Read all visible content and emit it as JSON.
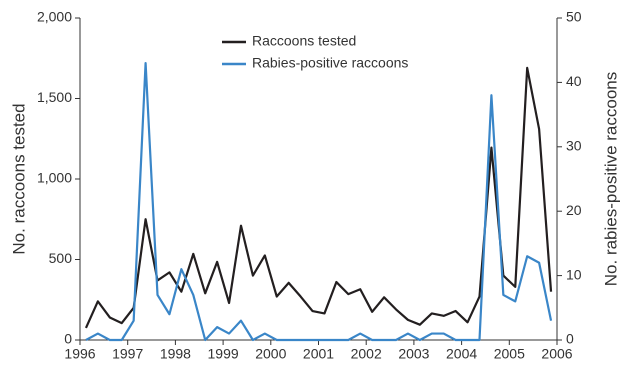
{
  "chart_data": {
    "type": "line",
    "x": [
      1996.125,
      1996.375,
      1996.625,
      1996.875,
      1997.125,
      1997.375,
      1997.625,
      1997.875,
      1998.125,
      1998.375,
      1998.625,
      1998.875,
      1999.125,
      1999.375,
      1999.625,
      1999.875,
      2000.125,
      2000.375,
      2000.625,
      2000.875,
      2001.125,
      2001.375,
      2001.625,
      2001.875,
      2002.125,
      2002.375,
      2002.625,
      2002.875,
      2003.125,
      2003.375,
      2003.625,
      2003.875,
      2004.125,
      2004.375,
      2004.625,
      2004.875,
      2005.125,
      2005.375,
      2005.625,
      2005.875
    ],
    "series": [
      {
        "name": "Raccoons tested",
        "color": "#231f20",
        "values": [
          75,
          240,
          140,
          105,
          200,
          750,
          370,
          420,
          300,
          535,
          290,
          485,
          230,
          710,
          400,
          525,
          270,
          355,
          270,
          180,
          165,
          360,
          285,
          315,
          175,
          265,
          190,
          125,
          95,
          165,
          150,
          180,
          110,
          270,
          1195,
          400,
          330,
          1690,
          1310,
          300
        ]
      },
      {
        "name": "Rabies-positive raccoons",
        "color": "#3a86c8",
        "axis": "y2",
        "values": [
          0,
          1,
          0,
          0,
          3,
          43,
          7,
          4,
          11,
          7,
          0,
          2,
          1,
          3,
          0,
          1,
          0,
          0,
          0,
          0,
          0,
          0,
          0,
          1,
          0,
          0,
          0,
          1,
          0,
          1,
          1,
          0,
          0,
          0,
          38,
          7,
          6,
          13,
          12,
          3
        ]
      }
    ],
    "ylabel": "No. raccoons tested",
    "y2label": "No. rabies-positive raccoons",
    "xlim": [
      1996,
      2006
    ],
    "xticks": [
      1996,
      1997,
      1998,
      1999,
      2000,
      2001,
      2002,
      2003,
      2004,
      2005,
      2006
    ],
    "ylim": [
      0,
      2000
    ],
    "yticks": [
      0,
      500,
      {
        "value": 1000,
        "label": "1,000"
      },
      {
        "value": 1500,
        "label": "1,500"
      },
      {
        "value": 2000,
        "label": "2,000"
      }
    ],
    "y2lim": [
      0,
      50
    ],
    "y2ticks": [
      0,
      10,
      20,
      30,
      40,
      50
    ],
    "legend": "top"
  }
}
